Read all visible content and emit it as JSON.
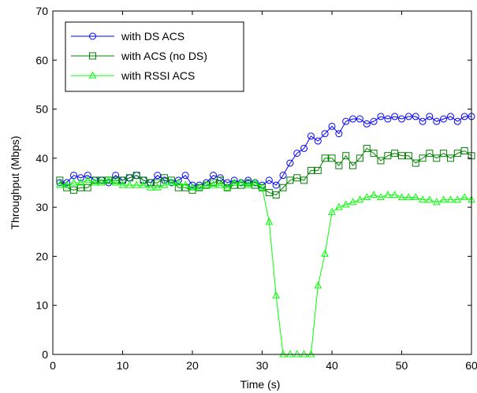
{
  "chart_data": {
    "type": "line",
    "title": "",
    "xlabel": "Time (s)",
    "ylabel": "Throughput (Mbps)",
    "xlim": [
      0,
      60
    ],
    "ylim": [
      0,
      70
    ],
    "xticks": [
      0,
      10,
      20,
      30,
      40,
      50,
      60
    ],
    "yticks": [
      0,
      10,
      20,
      30,
      40,
      50,
      60,
      70
    ],
    "grid": false,
    "legend_position": "top-left",
    "x": [
      1,
      2,
      3,
      4,
      5,
      6,
      7,
      8,
      9,
      10,
      11,
      12,
      13,
      14,
      15,
      16,
      17,
      18,
      19,
      20,
      21,
      22,
      23,
      24,
      25,
      26,
      27,
      28,
      29,
      30,
      31,
      32,
      33,
      34,
      35,
      36,
      37,
      38,
      39,
      40,
      41,
      42,
      43,
      44,
      45,
      46,
      47,
      48,
      49,
      50,
      51,
      52,
      53,
      54,
      55,
      56,
      57,
      58,
      59,
      60
    ],
    "series": [
      {
        "name": "with DS ACS",
        "color": "#0000ff",
        "marker": "circle",
        "values": [
          35,
          35,
          36.5,
          36,
          36.5,
          35.5,
          35.5,
          35,
          36.5,
          35.5,
          36,
          36.5,
          35.5,
          35,
          36.5,
          35.5,
          35,
          35.5,
          36.5,
          34.5,
          34.5,
          35,
          36.5,
          36,
          35,
          35.5,
          35,
          35.5,
          35,
          34.5,
          35.5,
          34.5,
          36.5,
          39,
          41,
          42,
          44.5,
          43.5,
          45,
          46.5,
          45,
          47.5,
          48,
          48,
          47,
          47.5,
          48.5,
          48,
          48.5,
          48,
          48.5,
          48.5,
          47.5,
          48.5,
          47.5,
          48,
          48.5,
          47.5,
          48.5,
          48.5
        ]
      },
      {
        "name": "with ACS (no DS)",
        "color": "#008000",
        "marker": "square",
        "values": [
          35.5,
          34,
          33.5,
          34,
          34,
          35.5,
          35.5,
          35.5,
          35.5,
          35.5,
          36,
          36.5,
          35.5,
          35,
          35,
          36,
          35.5,
          34,
          34,
          33.5,
          34,
          34.5,
          35,
          35.5,
          34,
          34.5,
          34.5,
          35,
          34.5,
          34,
          33,
          32.5,
          34,
          35.5,
          36,
          35.5,
          37.5,
          37.5,
          40,
          40,
          38.5,
          40.5,
          38.5,
          40,
          42,
          41,
          39.5,
          40.5,
          41,
          40.5,
          40.5,
          39,
          40,
          41,
          40,
          41,
          40,
          41,
          41.5,
          40.5
        ]
      },
      {
        "name": "with RSSI ACS",
        "color": "#00ff00",
        "marker": "triangle",
        "values": [
          34.5,
          34.5,
          35,
          35,
          35.5,
          35,
          35,
          35.5,
          35,
          34.5,
          34.5,
          34.5,
          34.5,
          34,
          34,
          34.5,
          35,
          35,
          34.5,
          34,
          34,
          34.5,
          34.5,
          34.5,
          34,
          35,
          35,
          34.5,
          35,
          34,
          27,
          12,
          0,
          0,
          0,
          0,
          0,
          14,
          20.5,
          29,
          30,
          30.5,
          31,
          31.5,
          32,
          32.5,
          32,
          32.5,
          32.5,
          32,
          32,
          32,
          31.5,
          31.5,
          31,
          31.5,
          31.5,
          31.5,
          32,
          31.5
        ]
      }
    ]
  }
}
